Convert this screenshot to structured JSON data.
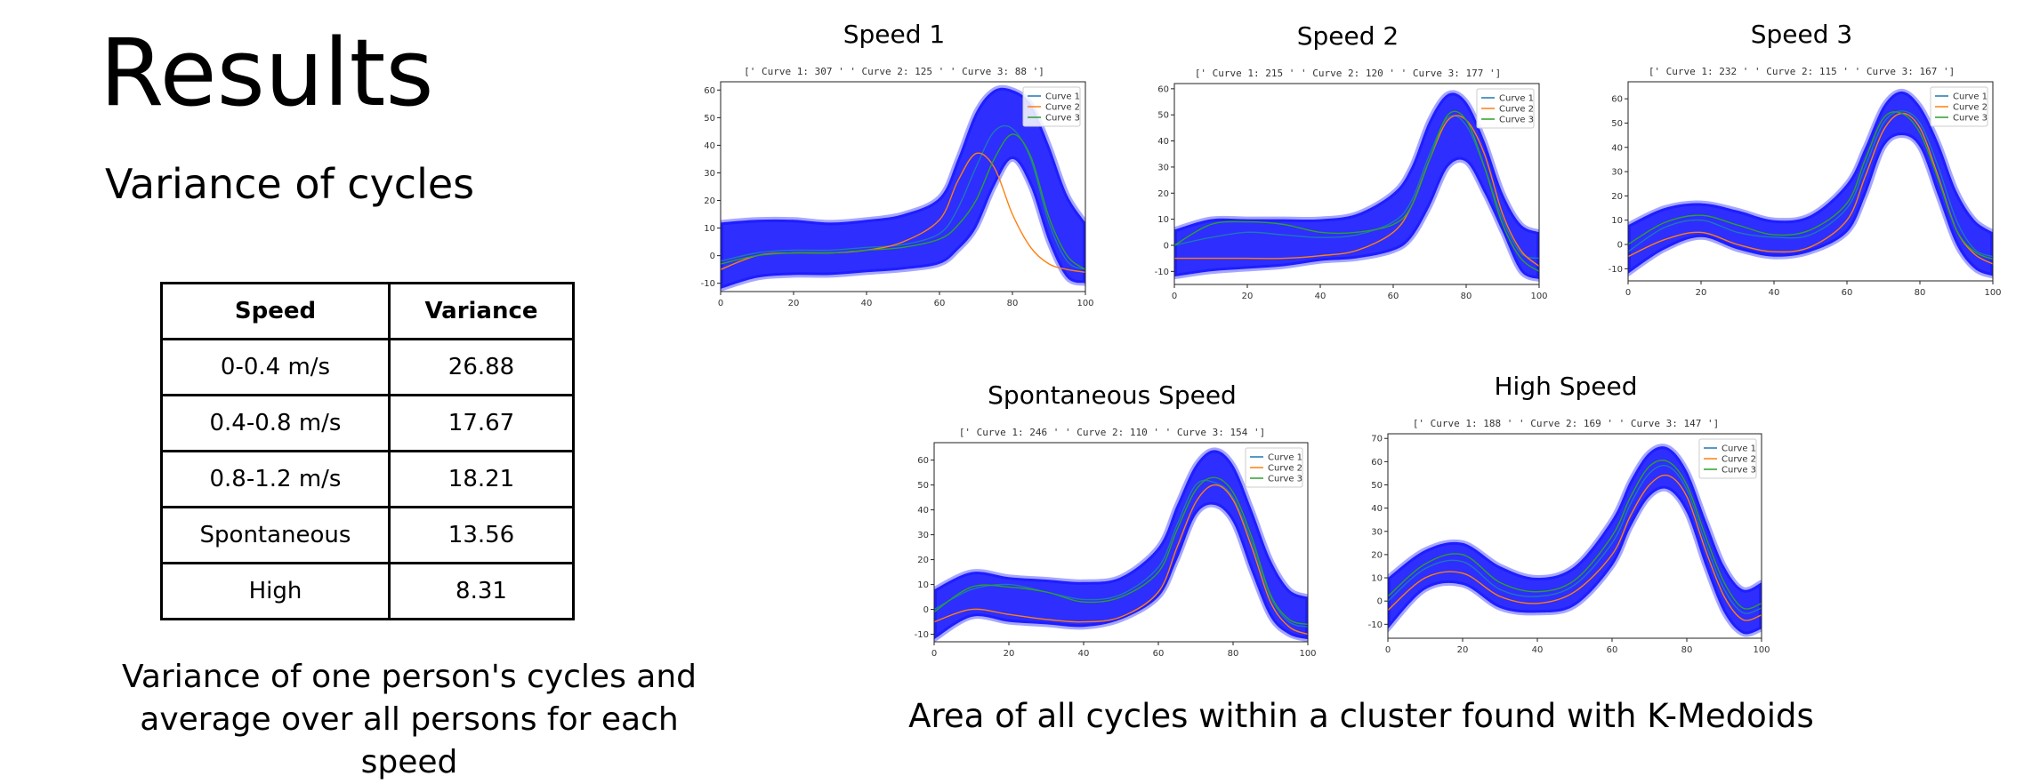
{
  "slide": {
    "title": "Results",
    "subtitle": "Variance of cycles",
    "caption_left": "Variance of one person's cycles and average over all persons for each speed",
    "caption_right": "Area of all cycles within a cluster found with K-Medoids"
  },
  "table": {
    "headers": [
      "Speed",
      "Variance"
    ],
    "rows": [
      [
        "0-0.4 m/s",
        "26.88"
      ],
      [
        "0.4-0.8 m/s",
        "17.67"
      ],
      [
        "0.8-1.2 m/s",
        "18.21"
      ],
      [
        "Spontaneous",
        "13.56"
      ],
      [
        "High",
        "8.31"
      ]
    ]
  },
  "colors": {
    "band": "#0000ff",
    "curve1": "#1f77b4",
    "curve2": "#ff7f0e",
    "curve3": "#2ca02c"
  },
  "chart_data": [
    {
      "type": "line",
      "title": "Speed 1",
      "subtitle": "[' Curve 1: 307 ' ' Curve 2: 125 ' ' Curve 3: 88 ']",
      "legend": [
        "Curve 1",
        "Curve 2",
        "Curve 3"
      ],
      "legend_position": "top-right",
      "xlim": [
        0,
        100
      ],
      "ylim": [
        -13,
        63
      ],
      "xticks": [
        0,
        20,
        40,
        60,
        80,
        100
      ],
      "yticks": [
        -10,
        0,
        10,
        20,
        30,
        40,
        50,
        60
      ],
      "x": [
        0,
        10,
        20,
        30,
        40,
        50,
        60,
        65,
        70,
        75,
        80,
        85,
        90,
        95,
        100
      ],
      "band_upper": [
        12,
        13,
        13,
        12,
        13,
        15,
        21,
        35,
        52,
        60,
        60,
        55,
        40,
        22,
        12
      ],
      "band_lower": [
        -12,
        -8,
        -7,
        -7,
        -6,
        -5,
        -3,
        2,
        10,
        25,
        35,
        25,
        5,
        -8,
        -10
      ],
      "series": [
        {
          "name": "Curve 1",
          "values": [
            -2,
            1,
            2,
            2,
            3,
            4,
            8,
            17,
            32,
            45,
            46,
            35,
            12,
            -2,
            -5
          ]
        },
        {
          "name": "Curve 2",
          "values": [
            -5,
            0,
            1,
            1,
            2,
            5,
            13,
            27,
            37,
            32,
            15,
            3,
            -3,
            -5,
            -6
          ]
        },
        {
          "name": "Curve 3",
          "values": [
            -3,
            0,
            1,
            1,
            2,
            3,
            6,
            11,
            20,
            35,
            44,
            36,
            14,
            0,
            -5
          ]
        }
      ]
    },
    {
      "type": "line",
      "title": "Speed 2",
      "subtitle": "[' Curve 1: 215 ' ' Curve 2: 120 ' ' Curve 3: 177 ']",
      "legend": [
        "Curve 1",
        "Curve 2",
        "Curve 3"
      ],
      "legend_position": "top-right",
      "xlim": [
        0,
        100
      ],
      "ylim": [
        -15,
        62
      ],
      "xticks": [
        0,
        20,
        40,
        60,
        80,
        100
      ],
      "yticks": [
        -10,
        0,
        10,
        20,
        30,
        40,
        50,
        60
      ],
      "x": [
        0,
        10,
        20,
        30,
        40,
        50,
        60,
        65,
        70,
        75,
        80,
        85,
        90,
        95,
        100
      ],
      "band_upper": [
        6,
        10,
        10,
        10,
        10,
        12,
        20,
        30,
        48,
        58,
        55,
        40,
        20,
        8,
        5
      ],
      "band_lower": [
        -12,
        -10,
        -9,
        -8,
        -6,
        -5,
        -2,
        3,
        15,
        30,
        32,
        20,
        5,
        -10,
        -13
      ],
      "series": [
        {
          "name": "Curve 1",
          "values": [
            0,
            3,
            5,
            4,
            3,
            4,
            9,
            17,
            35,
            49,
            46,
            30,
            10,
            -3,
            -5
          ]
        },
        {
          "name": "Curve 2",
          "values": [
            -5,
            -5,
            -5,
            -5,
            -4,
            -2,
            5,
            15,
            33,
            48,
            48,
            35,
            12,
            -2,
            -8
          ]
        },
        {
          "name": "Curve 3",
          "values": [
            0,
            8,
            9,
            8,
            5,
            5,
            8,
            15,
            33,
            50,
            48,
            30,
            8,
            -5,
            -10
          ]
        }
      ]
    },
    {
      "type": "line",
      "title": "Speed 3",
      "subtitle": "[' Curve 1: 232 ' ' Curve 2: 115 ' ' Curve 3: 167 ']",
      "legend": [
        "Curve 1",
        "Curve 2",
        "Curve 3"
      ],
      "legend_position": "top-right",
      "xlim": [
        0,
        100
      ],
      "ylim": [
        -15,
        67
      ],
      "xticks": [
        0,
        20,
        40,
        60,
        80,
        100
      ],
      "yticks": [
        -10,
        0,
        10,
        20,
        30,
        40,
        50,
        60
      ],
      "x": [
        0,
        10,
        20,
        30,
        40,
        50,
        60,
        65,
        70,
        75,
        80,
        85,
        90,
        95,
        100
      ],
      "band_upper": [
        8,
        15,
        17,
        14,
        10,
        12,
        25,
        40,
        57,
        63,
        57,
        42,
        22,
        10,
        5
      ],
      "band_lower": [
        -12,
        -2,
        3,
        -2,
        -5,
        -3,
        5,
        20,
        40,
        45,
        40,
        20,
        0,
        -10,
        -13
      ],
      "series": [
        {
          "name": "Curve 1",
          "values": [
            -3,
            7,
            10,
            5,
            3,
            4,
            15,
            32,
            50,
            55,
            50,
            32,
            10,
            -2,
            -5
          ]
        },
        {
          "name": "Curve 2",
          "values": [
            -5,
            2,
            5,
            0,
            -3,
            -1,
            10,
            28,
            47,
            54,
            48,
            28,
            6,
            -4,
            -8
          ]
        },
        {
          "name": "Curve 3",
          "values": [
            0,
            9,
            12,
            8,
            4,
            6,
            17,
            35,
            52,
            54,
            46,
            27,
            6,
            -3,
            -6
          ]
        }
      ]
    },
    {
      "type": "line",
      "title": "Spontaneous Speed",
      "subtitle": "[' Curve 1: 246 ' ' Curve 2: 110 ' ' Curve 3: 154 ']",
      "legend": [
        "Curve 1",
        "Curve 2",
        "Curve 3"
      ],
      "legend_position": "top-right",
      "xlim": [
        0,
        100
      ],
      "ylim": [
        -13,
        67
      ],
      "xticks": [
        0,
        20,
        40,
        60,
        80,
        100
      ],
      "yticks": [
        -10,
        0,
        10,
        20,
        30,
        40,
        50,
        60
      ],
      "x": [
        0,
        10,
        20,
        30,
        40,
        50,
        60,
        65,
        70,
        75,
        80,
        85,
        90,
        95,
        100
      ],
      "band_upper": [
        8,
        15,
        13,
        12,
        11,
        13,
        25,
        42,
        58,
        64,
        58,
        40,
        20,
        8,
        5
      ],
      "band_lower": [
        -12,
        -3,
        -5,
        -6,
        -7,
        -4,
        5,
        20,
        38,
        42,
        35,
        15,
        -3,
        -10,
        -12
      ],
      "series": [
        {
          "name": "Curve 1",
          "values": [
            0,
            8,
            10,
            7,
            4,
            6,
            17,
            34,
            50,
            51,
            45,
            27,
            5,
            -5,
            -7
          ]
        },
        {
          "name": "Curve 2",
          "values": [
            -5,
            0,
            -2,
            -4,
            -5,
            -3,
            7,
            25,
            43,
            50,
            44,
            25,
            3,
            -7,
            -10
          ]
        },
        {
          "name": "Curve 3",
          "values": [
            -1,
            9,
            9,
            7,
            3,
            5,
            15,
            32,
            48,
            53,
            47,
            29,
            6,
            -4,
            -6
          ]
        }
      ]
    },
    {
      "type": "line",
      "title": "High Speed",
      "subtitle": "[' Curve 1: 188 ' ' Curve 2: 169 ' ' Curve 3: 147 ']",
      "legend": [
        "Curve 1",
        "Curve 2",
        "Curve 3"
      ],
      "legend_position": "top-right",
      "xlim": [
        0,
        100
      ],
      "ylim": [
        -16,
        72
      ],
      "xticks": [
        0,
        20,
        40,
        60,
        80,
        100
      ],
      "yticks": [
        -10,
        0,
        10,
        20,
        30,
        40,
        50,
        60,
        70
      ],
      "x": [
        0,
        10,
        20,
        30,
        40,
        50,
        60,
        65,
        70,
        75,
        80,
        85,
        90,
        95,
        100
      ],
      "band_upper": [
        10,
        22,
        25,
        15,
        10,
        15,
        35,
        52,
        64,
        66,
        56,
        35,
        15,
        5,
        8
      ],
      "band_lower": [
        -12,
        5,
        7,
        -3,
        -5,
        -2,
        15,
        32,
        45,
        48,
        38,
        15,
        -5,
        -14,
        -12
      ],
      "series": [
        {
          "name": "Curve 1",
          "values": [
            0,
            14,
            17,
            5,
            2,
            7,
            25,
            42,
            55,
            58,
            48,
            25,
            5,
            -5,
            -3
          ]
        },
        {
          "name": "Curve 2",
          "values": [
            -4,
            10,
            12,
            2,
            -1,
            4,
            20,
            37,
            50,
            54,
            45,
            22,
            2,
            -8,
            -6
          ]
        },
        {
          "name": "Curve 3",
          "values": [
            2,
            16,
            20,
            8,
            4,
            9,
            28,
            45,
            58,
            60,
            50,
            28,
            8,
            -3,
            -1
          ]
        }
      ]
    }
  ]
}
